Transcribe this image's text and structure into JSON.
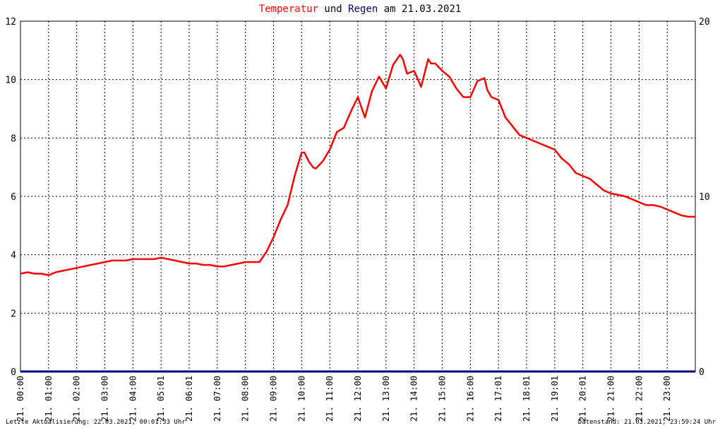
{
  "title": {
    "part_temperature": "Temperatur",
    "part_and": " und ",
    "part_rain": "Regen",
    "part_date": " am 21.03.2021"
  },
  "footer": {
    "last_update": "Letzte Aktualisierung: 22.03.2021, 00:01:33 Uhr",
    "data_status": "Datenstand: 21.03.2021, 23:59:24 Uhr"
  },
  "colors": {
    "temperature": "#ff0000",
    "rain": "#000080",
    "grid": "#000000",
    "axis": "#000000"
  },
  "chart_data": {
    "type": "line",
    "grid": true,
    "x_unit": "hours",
    "xlim": [
      0,
      24
    ],
    "x_tick_labels": [
      "21. 00:00",
      "21. 01:00",
      "21. 02:00",
      "21. 03:00",
      "21. 04:00",
      "21. 05:01",
      "21. 06:01",
      "21. 07:00",
      "21. 08:00",
      "21. 09:00",
      "21. 10:00",
      "21. 11:00",
      "21. 12:00",
      "21. 13:00",
      "21. 14:00",
      "21. 15:00",
      "21. 16:00",
      "21. 17:01",
      "21. 18:01",
      "21. 19:01",
      "21. 20:01",
      "21. 21:00",
      "21. 22:00",
      "21. 23:00"
    ],
    "y_left": {
      "lim": [
        0,
        12
      ],
      "ticks": [
        "0",
        "2",
        "4",
        "6",
        "8",
        "10",
        "12"
      ]
    },
    "y_right": {
      "lim": [
        0,
        20
      ],
      "ticks": [
        "0",
        "10",
        "20"
      ]
    },
    "series": [
      {
        "name": "Temperatur",
        "axis": "left",
        "x": [
          0,
          0.25,
          0.5,
          0.75,
          1.0,
          1.25,
          1.5,
          1.75,
          2.0,
          2.25,
          2.5,
          2.75,
          3.0,
          3.25,
          3.5,
          3.75,
          4.0,
          4.25,
          4.5,
          4.75,
          5.0,
          5.25,
          5.5,
          5.75,
          6.0,
          6.25,
          6.5,
          6.75,
          7.0,
          7.25,
          7.5,
          7.75,
          8.0,
          8.25,
          8.5,
          8.75,
          9.0,
          9.25,
          9.5,
          9.75,
          10.0,
          10.1,
          10.25,
          10.4,
          10.5,
          10.75,
          11.0,
          11.25,
          11.5,
          11.75,
          12.0,
          12.25,
          12.5,
          12.75,
          13.0,
          13.25,
          13.5,
          13.6,
          13.75,
          14.0,
          14.25,
          14.5,
          14.6,
          14.75,
          15.0,
          15.25,
          15.5,
          15.75,
          16.0,
          16.25,
          16.5,
          16.6,
          16.75,
          17.0,
          17.25,
          17.5,
          17.75,
          18.0,
          18.25,
          18.5,
          18.75,
          19.0,
          19.25,
          19.5,
          19.75,
          20.0,
          20.25,
          20.5,
          20.75,
          21.0,
          21.25,
          21.5,
          21.75,
          22.0,
          22.25,
          22.5,
          22.75,
          23.0,
          23.25,
          23.5,
          23.75,
          23.98
        ],
        "values": [
          3.35,
          3.4,
          3.35,
          3.35,
          3.3,
          3.4,
          3.45,
          3.5,
          3.55,
          3.6,
          3.65,
          3.7,
          3.75,
          3.8,
          3.8,
          3.8,
          3.85,
          3.85,
          3.85,
          3.85,
          3.9,
          3.85,
          3.8,
          3.75,
          3.7,
          3.7,
          3.65,
          3.65,
          3.6,
          3.6,
          3.65,
          3.7,
          3.75,
          3.75,
          3.75,
          4.1,
          4.6,
          5.2,
          5.7,
          6.7,
          7.5,
          7.5,
          7.2,
          7.0,
          6.95,
          7.2,
          7.6,
          8.2,
          8.35,
          8.9,
          9.4,
          8.7,
          9.6,
          10.1,
          9.7,
          10.5,
          10.85,
          10.7,
          10.2,
          10.3,
          9.75,
          10.7,
          10.55,
          10.55,
          10.3,
          10.1,
          9.7,
          9.4,
          9.4,
          9.95,
          10.05,
          9.65,
          9.4,
          9.3,
          8.7,
          8.4,
          8.1,
          8.0,
          7.9,
          7.8,
          7.7,
          7.6,
          7.3,
          7.1,
          6.8,
          6.7,
          6.6,
          6.4,
          6.2,
          6.1,
          6.05,
          6.0,
          5.9,
          5.8,
          5.7,
          5.7,
          5.65,
          5.55,
          5.45,
          5.35,
          5.3,
          5.3
        ]
      },
      {
        "name": "Regen",
        "axis": "right",
        "x": [
          0,
          24
        ],
        "values": [
          0,
          0
        ]
      }
    ]
  }
}
